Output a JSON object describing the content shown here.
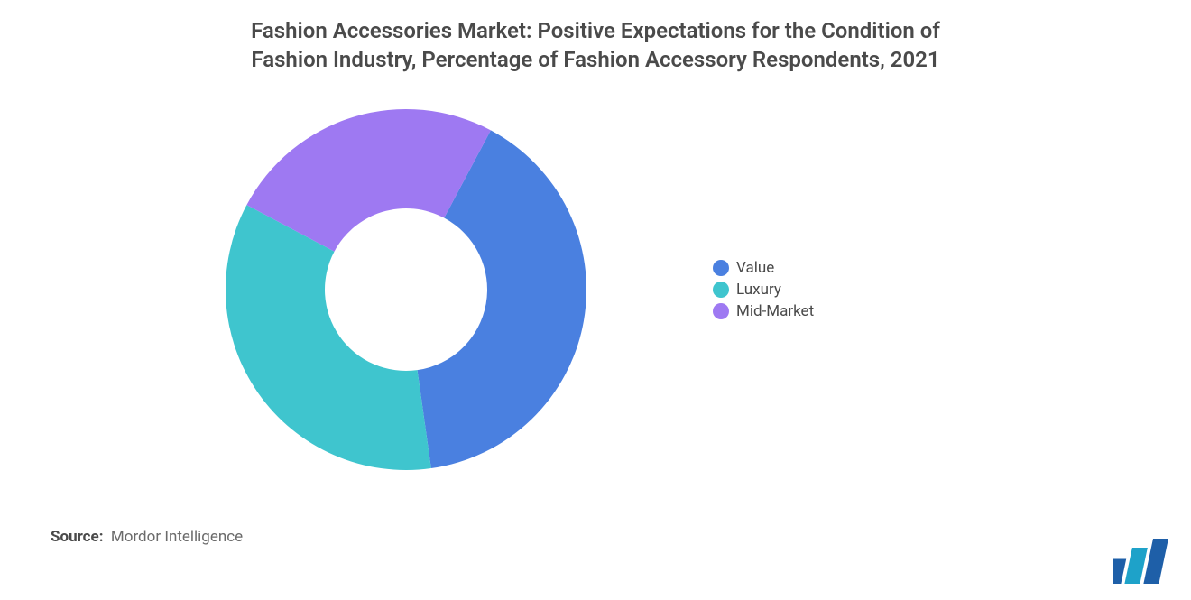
{
  "chart": {
    "type": "donut",
    "title_line1": "Fashion Accessories Market: Positive Expectations for the Condition of",
    "title_line2": "Fashion Industry, Percentage of Fashion Accessory Respondents, 2021",
    "title_fontsize": 24,
    "title_color": "#4a4a4a",
    "background_color": "#ffffff",
    "donut": {
      "outer_radius": 200,
      "inner_radius": 90,
      "start_angle_deg": -62,
      "segments": [
        {
          "label": "Value",
          "value": 40,
          "color": "#4a80e0"
        },
        {
          "label": "Luxury",
          "value": 35,
          "color": "#3fc5ce"
        },
        {
          "label": "Mid-Market",
          "value": 25,
          "color": "#9e79f2"
        }
      ]
    },
    "legend": {
      "fontsize": 17,
      "text_color": "#4a4a4a",
      "swatch_shape": "circle",
      "swatch_size": 18,
      "items": [
        {
          "label": "Value",
          "color": "#4a80e0"
        },
        {
          "label": "Luxury",
          "color": "#3fc5ce"
        },
        {
          "label": "Mid-Market",
          "color": "#9e79f2"
        }
      ]
    }
  },
  "source": {
    "label": "Source:",
    "text": "Mordor Intelligence",
    "fontsize": 17
  },
  "logo": {
    "bars": [
      {
        "height_frac": 0.55,
        "color": "#1e5fa8"
      },
      {
        "height_frac": 0.8,
        "color": "#1ea2c9"
      },
      {
        "height_frac": 1.0,
        "color": "#1e5fa8"
      }
    ]
  }
}
